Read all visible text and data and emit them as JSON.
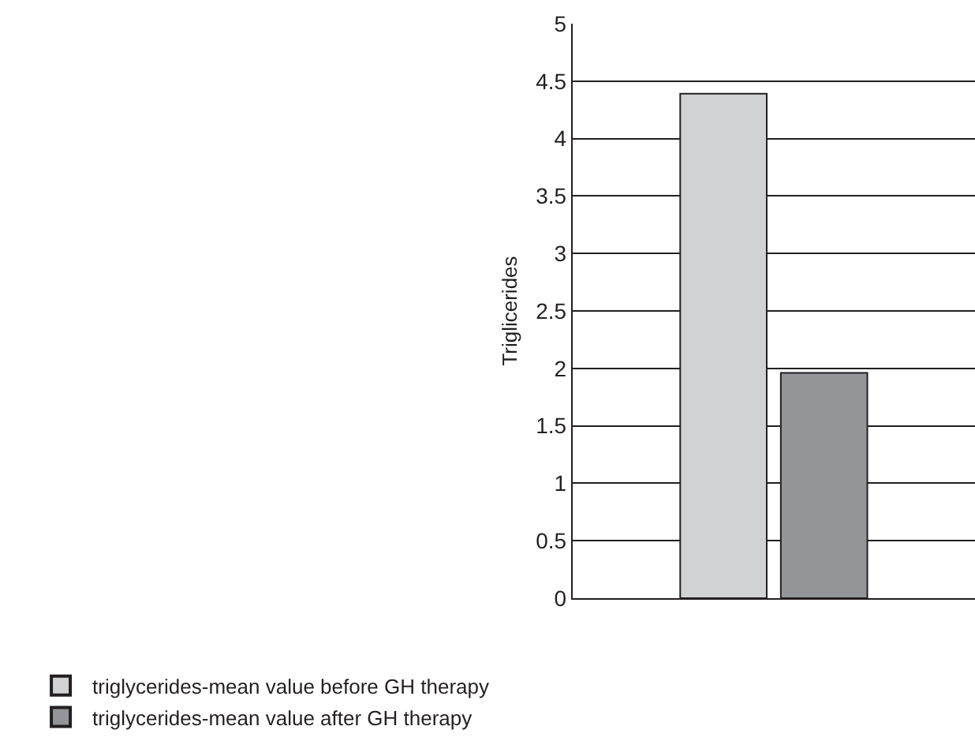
{
  "chart_data": {
    "type": "bar",
    "ylabel": "Triglicerides",
    "categories": [
      null
    ],
    "series": [
      {
        "name": "triglycerides-mean value before GH therapy",
        "color": "#d1d2d4",
        "values": [
          4.39
        ]
      },
      {
        "name": "triglycerides-mean value after GH therapy",
        "color": "#939598",
        "values": [
          1.96
        ]
      }
    ],
    "ylim": [
      0,
      5
    ],
    "yticks": [
      0,
      0.5,
      1,
      1.5,
      2,
      2.5,
      3,
      3.5,
      4,
      4.5,
      5
    ],
    "grid": "y",
    "legend": "bottom"
  }
}
